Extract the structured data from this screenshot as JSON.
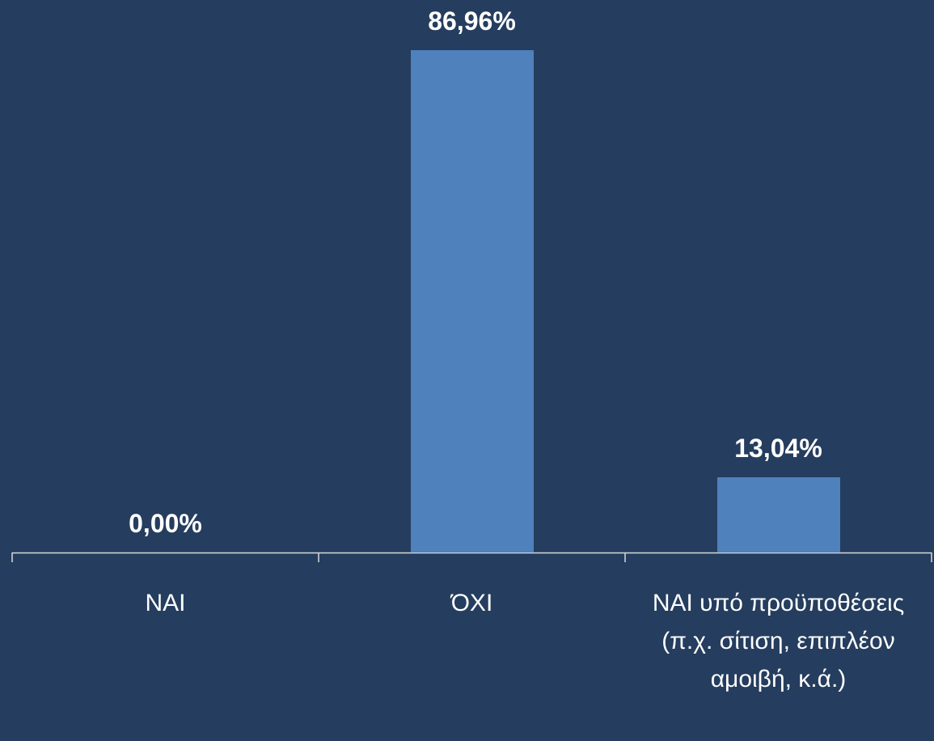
{
  "chart_data": {
    "type": "bar",
    "categories": [
      "ΝΑΙ",
      "ΌΧΙ",
      "ΝΑΙ υπό προϋποθέσεις (π.χ. σίτιση, επιπλέον αμοιβή, κ.ά.)"
    ],
    "values": [
      0,
      86.96,
      13.04
    ],
    "value_labels": [
      "0,00%",
      "86,96%",
      "13,04%"
    ],
    "color": "#4f81bd"
  }
}
